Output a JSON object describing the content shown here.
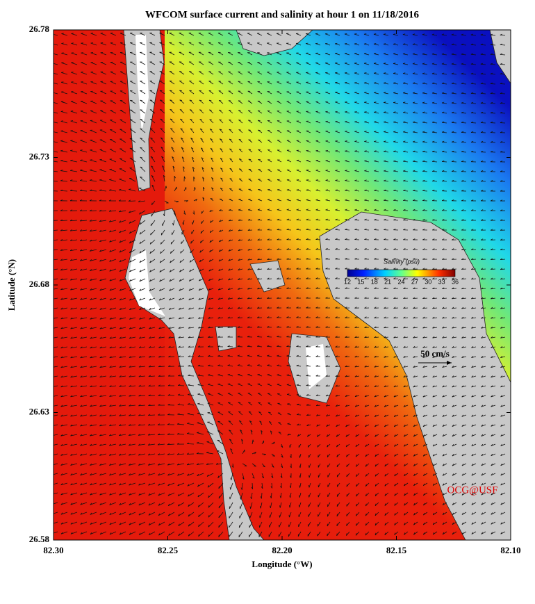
{
  "title": "WFCOM surface current and salinity at hour 1 on 11/18/2016",
  "x_axis": {
    "label": "Longitude (°W)",
    "ticks": [
      "82.30",
      "82.25",
      "82.20",
      "82.15",
      "82.10"
    ]
  },
  "y_axis": {
    "label": "Latitude (°N)",
    "ticks": [
      "26.78",
      "26.73",
      "26.68",
      "26.63",
      "26.58"
    ]
  },
  "colorbar": {
    "label": "Salinity (psu)",
    "ticks": [
      "12",
      "15",
      "18",
      "21",
      "24",
      "27",
      "30",
      "33",
      "36"
    ]
  },
  "scale_arrow": "50 cm/s",
  "credit": "OCG@USF"
}
